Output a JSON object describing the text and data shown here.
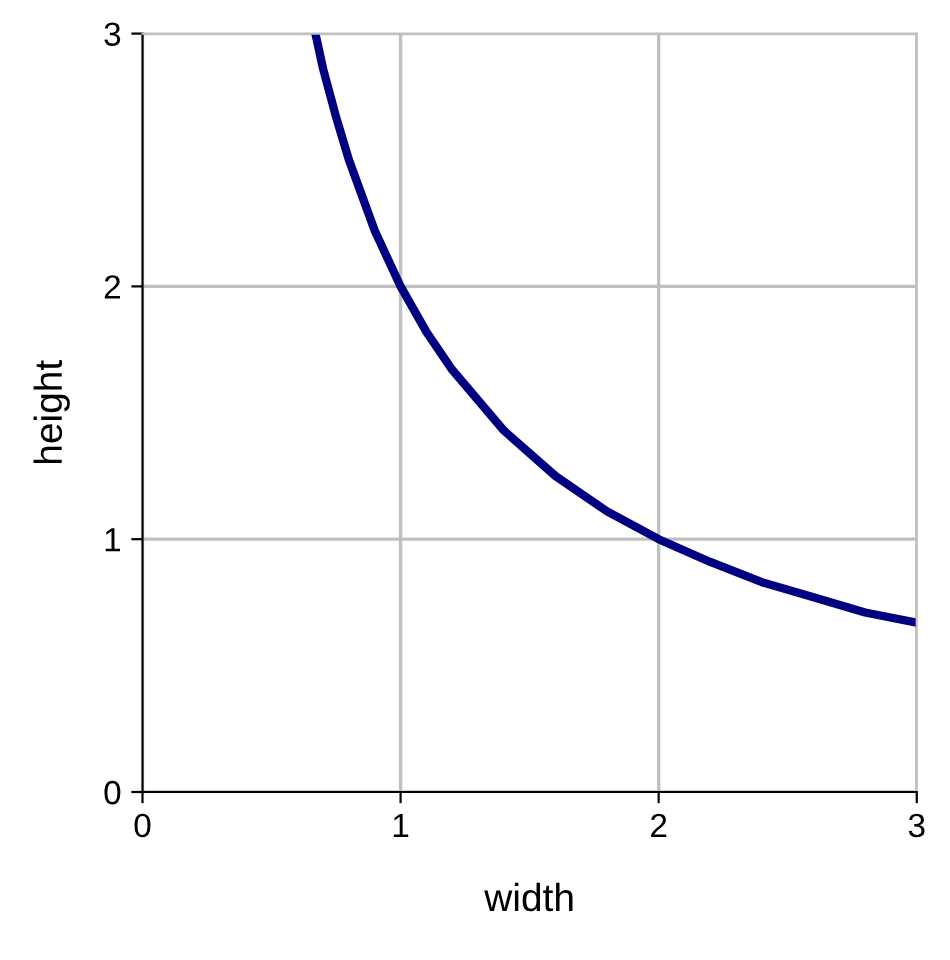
{
  "chart_data": {
    "type": "line",
    "xlabel": "width",
    "ylabel": "height",
    "x": [
      0.67,
      0.7,
      0.75,
      0.8,
      0.9,
      1.0,
      1.1,
      1.2,
      1.4,
      1.6,
      1.8,
      2.0,
      2.2,
      2.4,
      2.6,
      2.8,
      3.0
    ],
    "series": [
      {
        "color": "#000080",
        "values": [
          3.0,
          2.86,
          2.67,
          2.5,
          2.22,
          2.0,
          1.82,
          1.67,
          1.43,
          1.25,
          1.11,
          1.0,
          0.91,
          0.83,
          0.77,
          0.71,
          0.67
        ]
      }
    ],
    "xlim": [
      0,
      3
    ],
    "ylim": [
      0,
      3
    ],
    "xticks": [
      0,
      1,
      2,
      3
    ],
    "yticks": [
      0,
      1,
      2,
      3
    ],
    "grid": true,
    "marker": "none",
    "line_style": "solid"
  }
}
